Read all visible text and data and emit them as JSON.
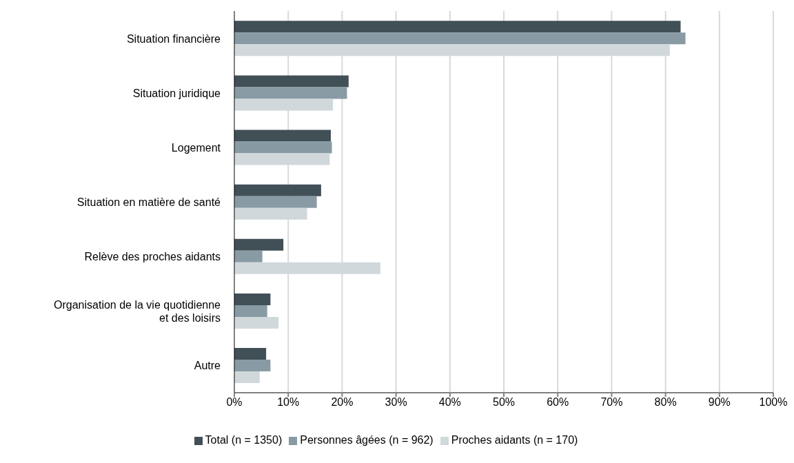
{
  "chart_data": {
    "type": "bar",
    "orientation": "horizontal",
    "categories": [
      "Situation financière",
      "Situation juridique",
      "Logement",
      "Situation en matière de santé",
      "Relève des proches aidants",
      "Organisation de la vie quotidienne et des loisirs",
      "Autre"
    ],
    "series": [
      {
        "name": "Total (n = 1350)",
        "color": "#414f56",
        "values": [
          82.8,
          21.2,
          17.9,
          16.1,
          9.1,
          6.7,
          5.9
        ]
      },
      {
        "name": "Personnes âgées (n = 962)",
        "color": "#889ba5",
        "values": [
          83.7,
          20.9,
          18.1,
          15.3,
          5.2,
          6.1,
          6.7
        ]
      },
      {
        "name": "Proches aidants (n = 170)",
        "color": "#d1d8db",
        "values": [
          80.8,
          18.3,
          17.7,
          13.5,
          27.1,
          8.2,
          4.7
        ]
      }
    ],
    "xlim": [
      0,
      100
    ],
    "xticks": [
      {
        "value": 0,
        "label": "0%"
      },
      {
        "value": 10,
        "label": "10%"
      },
      {
        "value": 20,
        "label": "20%"
      },
      {
        "value": 30,
        "label": "30%"
      },
      {
        "value": 40,
        "label": "40%"
      },
      {
        "value": 50,
        "label": "50%"
      },
      {
        "value": 60,
        "label": "60%"
      },
      {
        "value": 70,
        "label": "70%"
      },
      {
        "value": 80,
        "label": "80%"
      },
      {
        "value": 90,
        "label": "90%"
      },
      {
        "value": 100,
        "label": "100%"
      }
    ],
    "grid": "x",
    "legend": "bottom"
  }
}
